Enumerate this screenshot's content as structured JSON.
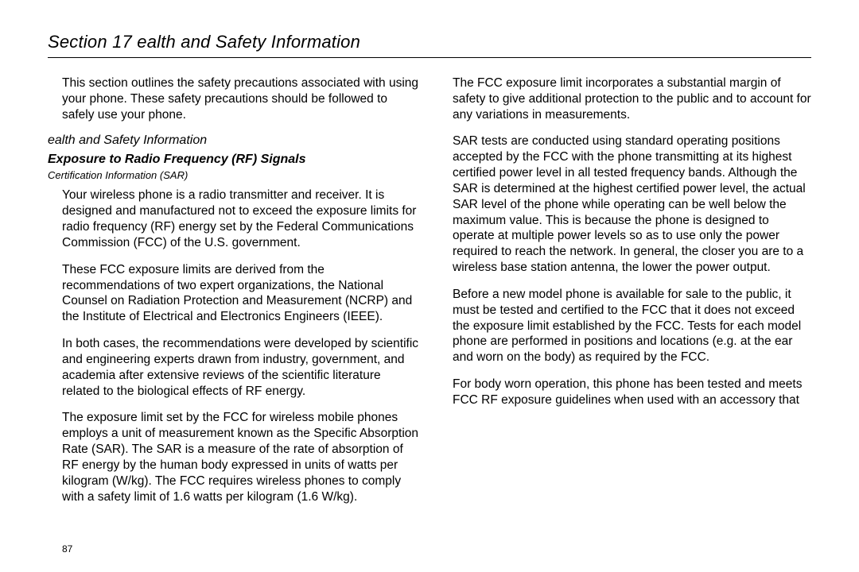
{
  "header": {
    "title": "Section 17 ealth and Safety Information"
  },
  "intro": "This section outlines the safety precautions associated with using your phone. These safety precautions should be followed to safely use your phone.",
  "subSection": "ealth and Safety Information",
  "heading": "Exposure to Radio Frequency (RF) Signals",
  "subHeading": "Certification Information (SAR)",
  "paragraphs": {
    "p1": "Your wireless phone is a radio transmitter and receiver. It is designed and manufactured not to exceed the exposure limits for radio frequency (RF) energy set by the Federal Communications Commission (FCC) of the U.S. government.",
    "p2": "These FCC exposure limits are derived from the recommendations of two expert organizations, the National Counsel on Radiation Protection and Measurement (NCRP) and the Institute of Electrical and Electronics Engineers (IEEE).",
    "p3": "In both cases, the recommendations were developed by scientific and engineering experts drawn from industry, government, and academia after extensive reviews of the scientific literature related to the biological effects of RF energy.",
    "p4": "The exposure limit set by the FCC for wireless mobile phones employs a unit of measurement known as the Specific Absorption Rate (SAR). The SAR is a measure of the rate of absorption of RF energy by the human body expressed in units of watts per kilogram (W/kg). The FCC requires wireless phones to comply with a safety limit of 1.6 watts per kilogram (1.6 W/kg).",
    "p5": "The FCC exposure limit incorporates a substantial margin of safety to give additional protection to the public and to account for any variations in measurements.",
    "p6": "SAR tests are conducted using standard operating positions accepted by the FCC with the phone transmitting at its highest certified power level in all tested frequency bands. Although the SAR is determined at the highest certified power level, the actual SAR level of the phone while operating can be well below the maximum value. This is because the phone is designed to operate at multiple power levels so as to use only the power required to reach the network. In general, the closer you are to a wireless base station antenna, the lower the power output.",
    "p7": "Before a new model phone is available for sale to the public, it must be tested and certified to the FCC that it does not exceed the exposure limit established by the FCC. Tests for each model phone are performed in positions and locations (e.g. at the ear and worn on the body) as required by the FCC.",
    "p8": "For body worn operation, this phone has been tested and meets FCC RF exposure guidelines when used with an accessory that"
  },
  "pageNumber": "87",
  "style": {
    "background": "#ffffff",
    "text_color": "#000000",
    "body_font_size": 15.5,
    "title_font_size": 22
  }
}
